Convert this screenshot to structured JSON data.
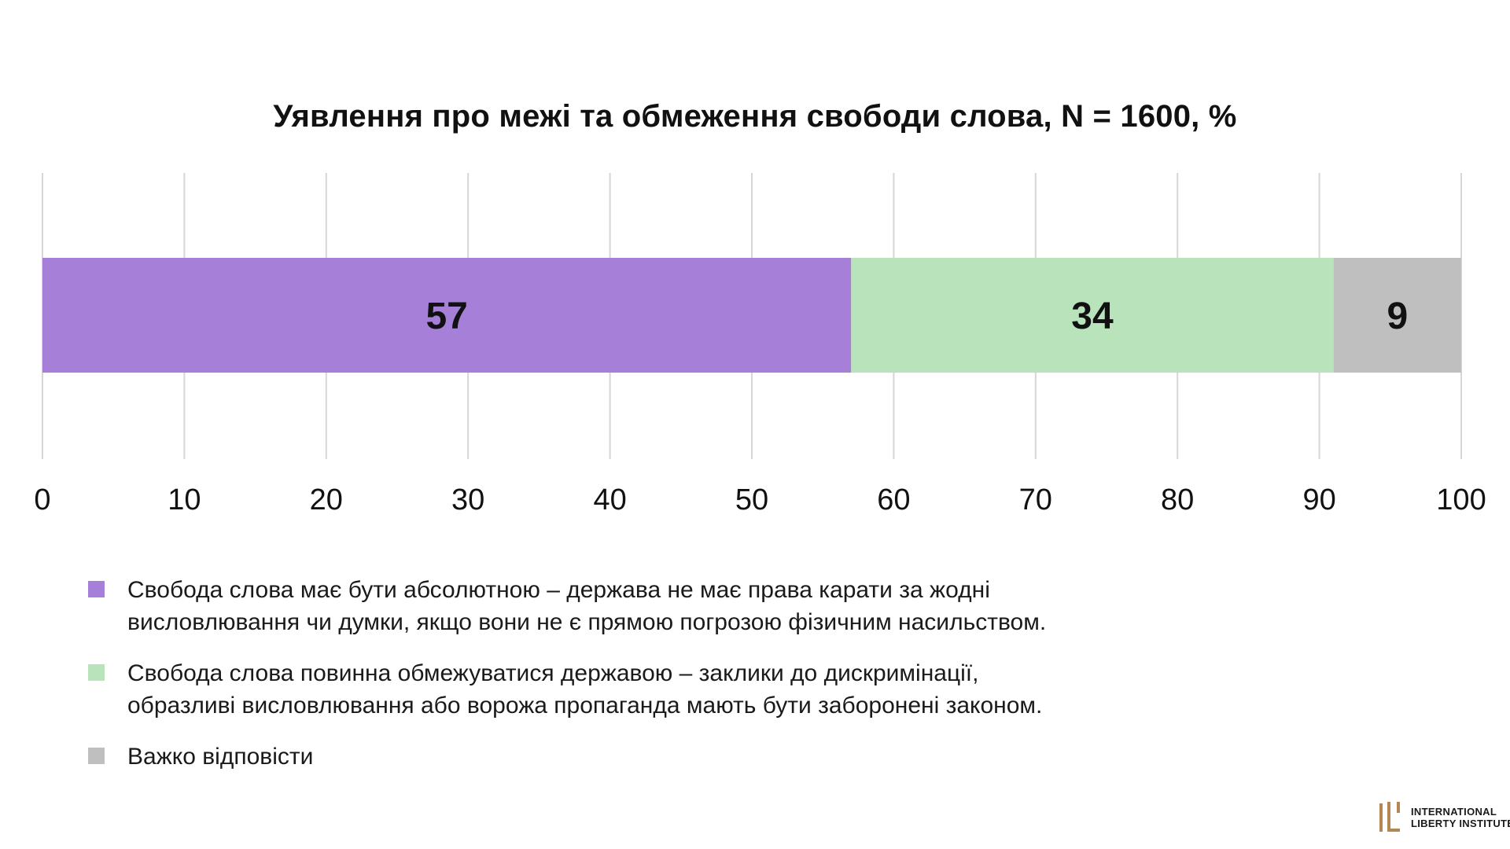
{
  "chart_data": {
    "type": "bar",
    "orientation": "horizontal",
    "stacked": true,
    "title": "Уявлення про межі та обмеження свободи слова, N = 1600, %",
    "xlabel": "",
    "ylabel": "",
    "xlim": [
      0,
      100
    ],
    "x_ticks": [
      0,
      10,
      20,
      30,
      40,
      50,
      60,
      70,
      80,
      90,
      100
    ],
    "grid": "vertical",
    "legend_position": "bottom-left",
    "series": [
      {
        "value": 57,
        "color": "#a67fd8",
        "legend_lines": [
          "Свобода слова має бути абсолютною – держава не має права карати за жодні",
          "висловлювання чи думки, якщо вони не є прямою погрозою фізичним насильством."
        ]
      },
      {
        "value": 34,
        "color": "#b9e4bb",
        "legend_lines": [
          "Свобода слова повинна обмежуватися державою – заклики до дискримінації,",
          "образливі висловлювання або ворожа пропаганда мають бути заборонені законом."
        ]
      },
      {
        "value": 9,
        "color": "#bfbfbf",
        "legend_lines": [
          "Важко відповісти"
        ]
      }
    ]
  },
  "logo": {
    "line1": "INTERNATIONAL",
    "line2": "LIBERTY INSTITUTE",
    "color": "#b3874f"
  }
}
